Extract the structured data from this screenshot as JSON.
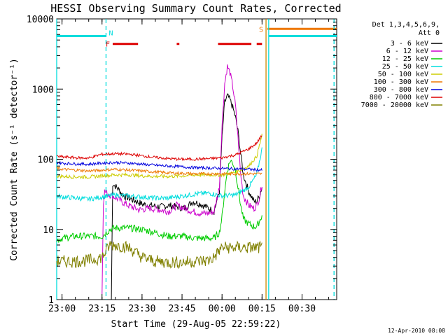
{
  "chart_data": {
    "type": "line",
    "title": "HESSI Observing Summary Count Rates, Corrected",
    "xlabel": "Start Time (29-Aug-05 22:59:22)",
    "ylabel": "Corrected Count Rate (s⁻¹ detector⁻¹)",
    "yscale": "log",
    "xlim_min": [
      -2,
      103
    ],
    "ylim": [
      1,
      10000
    ],
    "x_ticks": [
      {
        "x": 0,
        "label": "23:00"
      },
      {
        "x": 15,
        "label": "23:15"
      },
      {
        "x": 30,
        "label": "23:30"
      },
      {
        "x": 45,
        "label": "23:45"
      },
      {
        "x": 60,
        "label": "00:00"
      },
      {
        "x": 75,
        "label": "00:15"
      },
      {
        "x": 90,
        "label": "00:30"
      }
    ],
    "y_ticks": [
      {
        "y": 1,
        "label": "1"
      },
      {
        "y": 10,
        "label": "10"
      },
      {
        "y": 100,
        "label": "100"
      },
      {
        "y": 1000,
        "label": "1000"
      },
      {
        "y": 10000,
        "label": "10000"
      }
    ],
    "legend_title": [
      "Det 1,3,4,5,6,9,",
      "Att 0"
    ],
    "legend_position": "right",
    "series": [
      {
        "name": "3 - 6 keV",
        "color": "#000000",
        "x": [
          18.5,
          19,
          21,
          23,
          25,
          28,
          30,
          33,
          37,
          40,
          43,
          46,
          49,
          52,
          55,
          57,
          59,
          60,
          61,
          62,
          63,
          64,
          65,
          66,
          67,
          68,
          70,
          72,
          73,
          74,
          75
        ],
        "values": [
          1,
          45,
          38,
          30,
          28,
          25,
          23,
          22,
          21,
          22,
          21,
          20,
          25,
          23,
          20,
          18,
          35,
          200,
          650,
          800,
          700,
          550,
          400,
          250,
          120,
          60,
          35,
          25,
          25,
          30,
          40
        ]
      },
      {
        "name": "6 - 12 keV",
        "color": "#cc00cc",
        "x": [
          15,
          15.5,
          16,
          17,
          19,
          21,
          23,
          26,
          29,
          33,
          37,
          40,
          43,
          46,
          49,
          52,
          55,
          57,
          59,
          60,
          61,
          62,
          63,
          64,
          65,
          66,
          67,
          68,
          70,
          72,
          73,
          74,
          75
        ],
        "values": [
          1.2,
          25,
          35,
          32,
          30,
          27,
          24,
          21,
          19,
          20,
          19,
          18,
          22,
          20,
          18,
          17,
          17,
          18,
          40,
          300,
          1200,
          2100,
          1700,
          1100,
          600,
          200,
          60,
          30,
          22,
          20,
          22,
          28,
          45
        ]
      },
      {
        "name": "12 - 25 keV",
        "color": "#00cc00",
        "x": [
          -2,
          0,
          5,
          10,
          15,
          18,
          20,
          25,
          30,
          35,
          40,
          45,
          50,
          55,
          57,
          59,
          60,
          61,
          62,
          63,
          64,
          65,
          66,
          67,
          68,
          70,
          72,
          73,
          74,
          75
        ],
        "values": [
          7,
          7.5,
          8,
          8,
          8,
          10,
          10.5,
          10.5,
          10,
          9,
          8,
          8,
          7.5,
          7.5,
          7.5,
          9,
          15,
          35,
          70,
          95,
          90,
          70,
          40,
          22,
          14,
          12,
          11,
          11,
          13,
          16
        ]
      },
      {
        "name": "25 - 50 keV",
        "color": "#00dddd",
        "x": [
          -2,
          0,
          5,
          10,
          15,
          20,
          25,
          30,
          35,
          40,
          45,
          50,
          55,
          60,
          65,
          70,
          73,
          75
        ],
        "values": [
          30,
          29,
          28,
          27,
          29,
          31,
          30,
          29,
          28,
          28,
          30,
          32,
          33,
          30,
          31,
          40,
          60,
          140
        ]
      },
      {
        "name": "50 - 100 keV",
        "color": "#cccc00",
        "x": [
          -2,
          0,
          5,
          10,
          15,
          20,
          25,
          30,
          35,
          40,
          45,
          50,
          55,
          60,
          65,
          70,
          73,
          75
        ],
        "values": [
          58,
          57,
          56,
          56,
          58,
          60,
          60,
          58,
          57,
          57,
          58,
          60,
          60,
          60,
          65,
          80,
          110,
          220
        ]
      },
      {
        "name": "100 - 300 keV",
        "color": "#ee7700",
        "x": [
          -2,
          0,
          5,
          10,
          15,
          20,
          25,
          30,
          35,
          40,
          45,
          50,
          55,
          60,
          65,
          70,
          75
        ],
        "values": [
          75,
          72,
          70,
          68,
          70,
          72,
          70,
          68,
          66,
          64,
          63,
          62,
          62,
          62,
          62,
          62,
          62
        ]
      },
      {
        "name": "300 - 800 keV",
        "color": "#0000dd",
        "x": [
          -2,
          0,
          5,
          10,
          15,
          20,
          25,
          30,
          35,
          40,
          45,
          50,
          55,
          60,
          65,
          70,
          75
        ],
        "values": [
          90,
          88,
          86,
          85,
          88,
          90,
          88,
          85,
          82,
          80,
          78,
          76,
          75,
          74,
          73,
          72,
          70
        ]
      },
      {
        "name": "800 - 7000 keV",
        "color": "#dd0000",
        "x": [
          -2,
          0,
          5,
          10,
          15,
          20,
          25,
          30,
          35,
          40,
          45,
          50,
          55,
          60,
          65,
          70,
          73,
          75
        ],
        "values": [
          110,
          108,
          105,
          104,
          118,
          120,
          118,
          112,
          106,
          102,
          100,
          100,
          102,
          105,
          115,
          140,
          170,
          220
        ]
      },
      {
        "name": "7000 - 20000 keV",
        "color": "#808000",
        "x": [
          -2,
          0,
          5,
          10,
          15,
          18,
          20,
          25,
          30,
          35,
          40,
          45,
          50,
          55,
          57,
          59,
          60,
          62,
          65,
          70,
          75
        ],
        "values": [
          3.5,
          3.5,
          3.5,
          3.6,
          4,
          6,
          6,
          5.5,
          4,
          3.5,
          3.4,
          3.4,
          3.5,
          3.6,
          4,
          5,
          5.5,
          5.5,
          5.5,
          5.5,
          5.5
        ]
      }
    ],
    "state_bars": [
      {
        "label": "N",
        "color": "#00dddd",
        "y": 5700,
        "segments": [
          [
            -2,
            16.5
          ]
        ]
      },
      {
        "label": "F",
        "color": "#dd0000",
        "y": 4400,
        "segments": [
          [
            19,
            28.5
          ],
          [
            43,
            44
          ],
          [
            58.5,
            71
          ],
          [
            73,
            75
          ]
        ]
      },
      {
        "label": "S",
        "color": "#ee7700",
        "y": 7200,
        "segments": [
          [
            77,
            103
          ]
        ]
      },
      {
        "label": "",
        "color": "#00dddd",
        "y": 5700,
        "segments": [
          [
            77.5,
            103
          ]
        ]
      }
    ],
    "vertical_markers": [
      {
        "x": 16.5,
        "color": "#00dddd",
        "style": "dashed"
      },
      {
        "x": 76.5,
        "color": "#cc8800",
        "style": "solid"
      },
      {
        "x": 77.5,
        "color": "#00dddd",
        "style": "solid"
      },
      {
        "x": 102,
        "color": "#00dddd",
        "style": "dashed"
      },
      {
        "x": -2,
        "color": "#00dddd",
        "style": "solid"
      }
    ],
    "footer": "12-Apr-2010 08:08"
  }
}
